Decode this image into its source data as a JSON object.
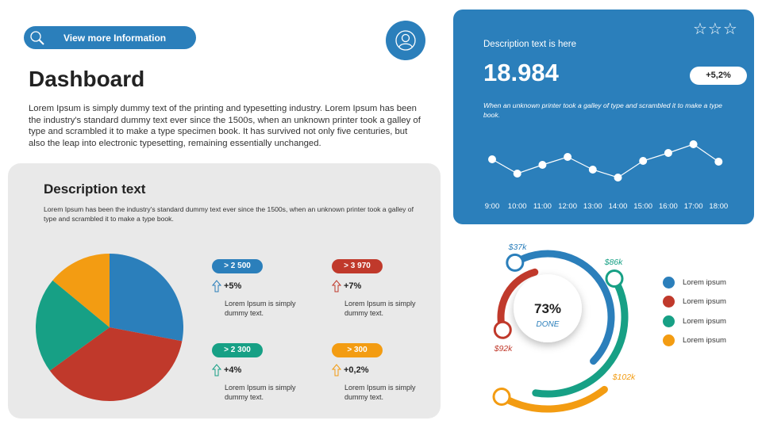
{
  "header": {
    "view_button": "View  more Information",
    "title": "Dashboard",
    "intro": "Lorem Ipsum is simply dummy text of the printing and typesetting industry. Lorem Ipsum has been the industry's standard dummy text ever since the 1500s, when an unknown printer took a galley of type and scrambled it to make a type specimen book. It has survived not only five centuries, but also the leap into electronic typesetting, remaining essentially unchanged."
  },
  "panel": {
    "title": "Description text",
    "text": "Lorem Ipsum has been the industry's standard dummy text ever since the 1500s, when an unknown printer took a galley of type and scrambled it to make a type book.",
    "stats": [
      {
        "badge": "> 2 500",
        "change": "+5%",
        "text": "Lorem Ipsum is simply  dummy text.",
        "color": "#2b7fbb"
      },
      {
        "badge": "> 3 970",
        "change": "+7%",
        "text": "Lorem Ipsum is simply  dummy text.",
        "color": "#c0392b"
      },
      {
        "badge": "> 2 300",
        "change": "+4%",
        "text": "Lorem Ipsum is simply  dummy text.",
        "color": "#17a085"
      },
      {
        "badge": "> 300",
        "change": "+0,2%",
        "text": "Lorem Ipsum is simply  dummy text.",
        "color": "#f39c12"
      }
    ]
  },
  "card": {
    "stars": "☆☆☆",
    "description": "Description text is here",
    "value": "18.984",
    "badge": "+5,2%",
    "italic": "When an unknown printer took a galley of type and scrambled it to make a type book."
  },
  "donut": {
    "center_value": "73%",
    "center_label": "DONE",
    "rings": [
      {
        "label": "$37k",
        "color": "#2b7fbb"
      },
      {
        "label": "$92k",
        "color": "#c0392b"
      },
      {
        "label": "$86k",
        "color": "#17a085"
      },
      {
        "label": "$102k",
        "color": "#f39c12"
      }
    ],
    "legend": [
      "Lorem ipsum",
      "Lorem ipsum",
      "Lorem ipsum",
      "Lorem ipsum"
    ]
  },
  "chart_data": [
    {
      "type": "pie",
      "values": [
        28,
        37,
        21,
        14
      ],
      "colors": [
        "#2b7fbb",
        "#c0392b",
        "#17a085",
        "#f39c12"
      ]
    },
    {
      "type": "line",
      "categories": [
        "9:00",
        "10:00",
        "11:00",
        "12:00",
        "13:00",
        "14:00",
        "15:00",
        "16:00",
        "17:00",
        "18:00"
      ],
      "values": [
        29,
        11,
        22,
        32,
        16,
        6,
        27,
        37,
        48,
        26
      ],
      "grid": false
    }
  ]
}
